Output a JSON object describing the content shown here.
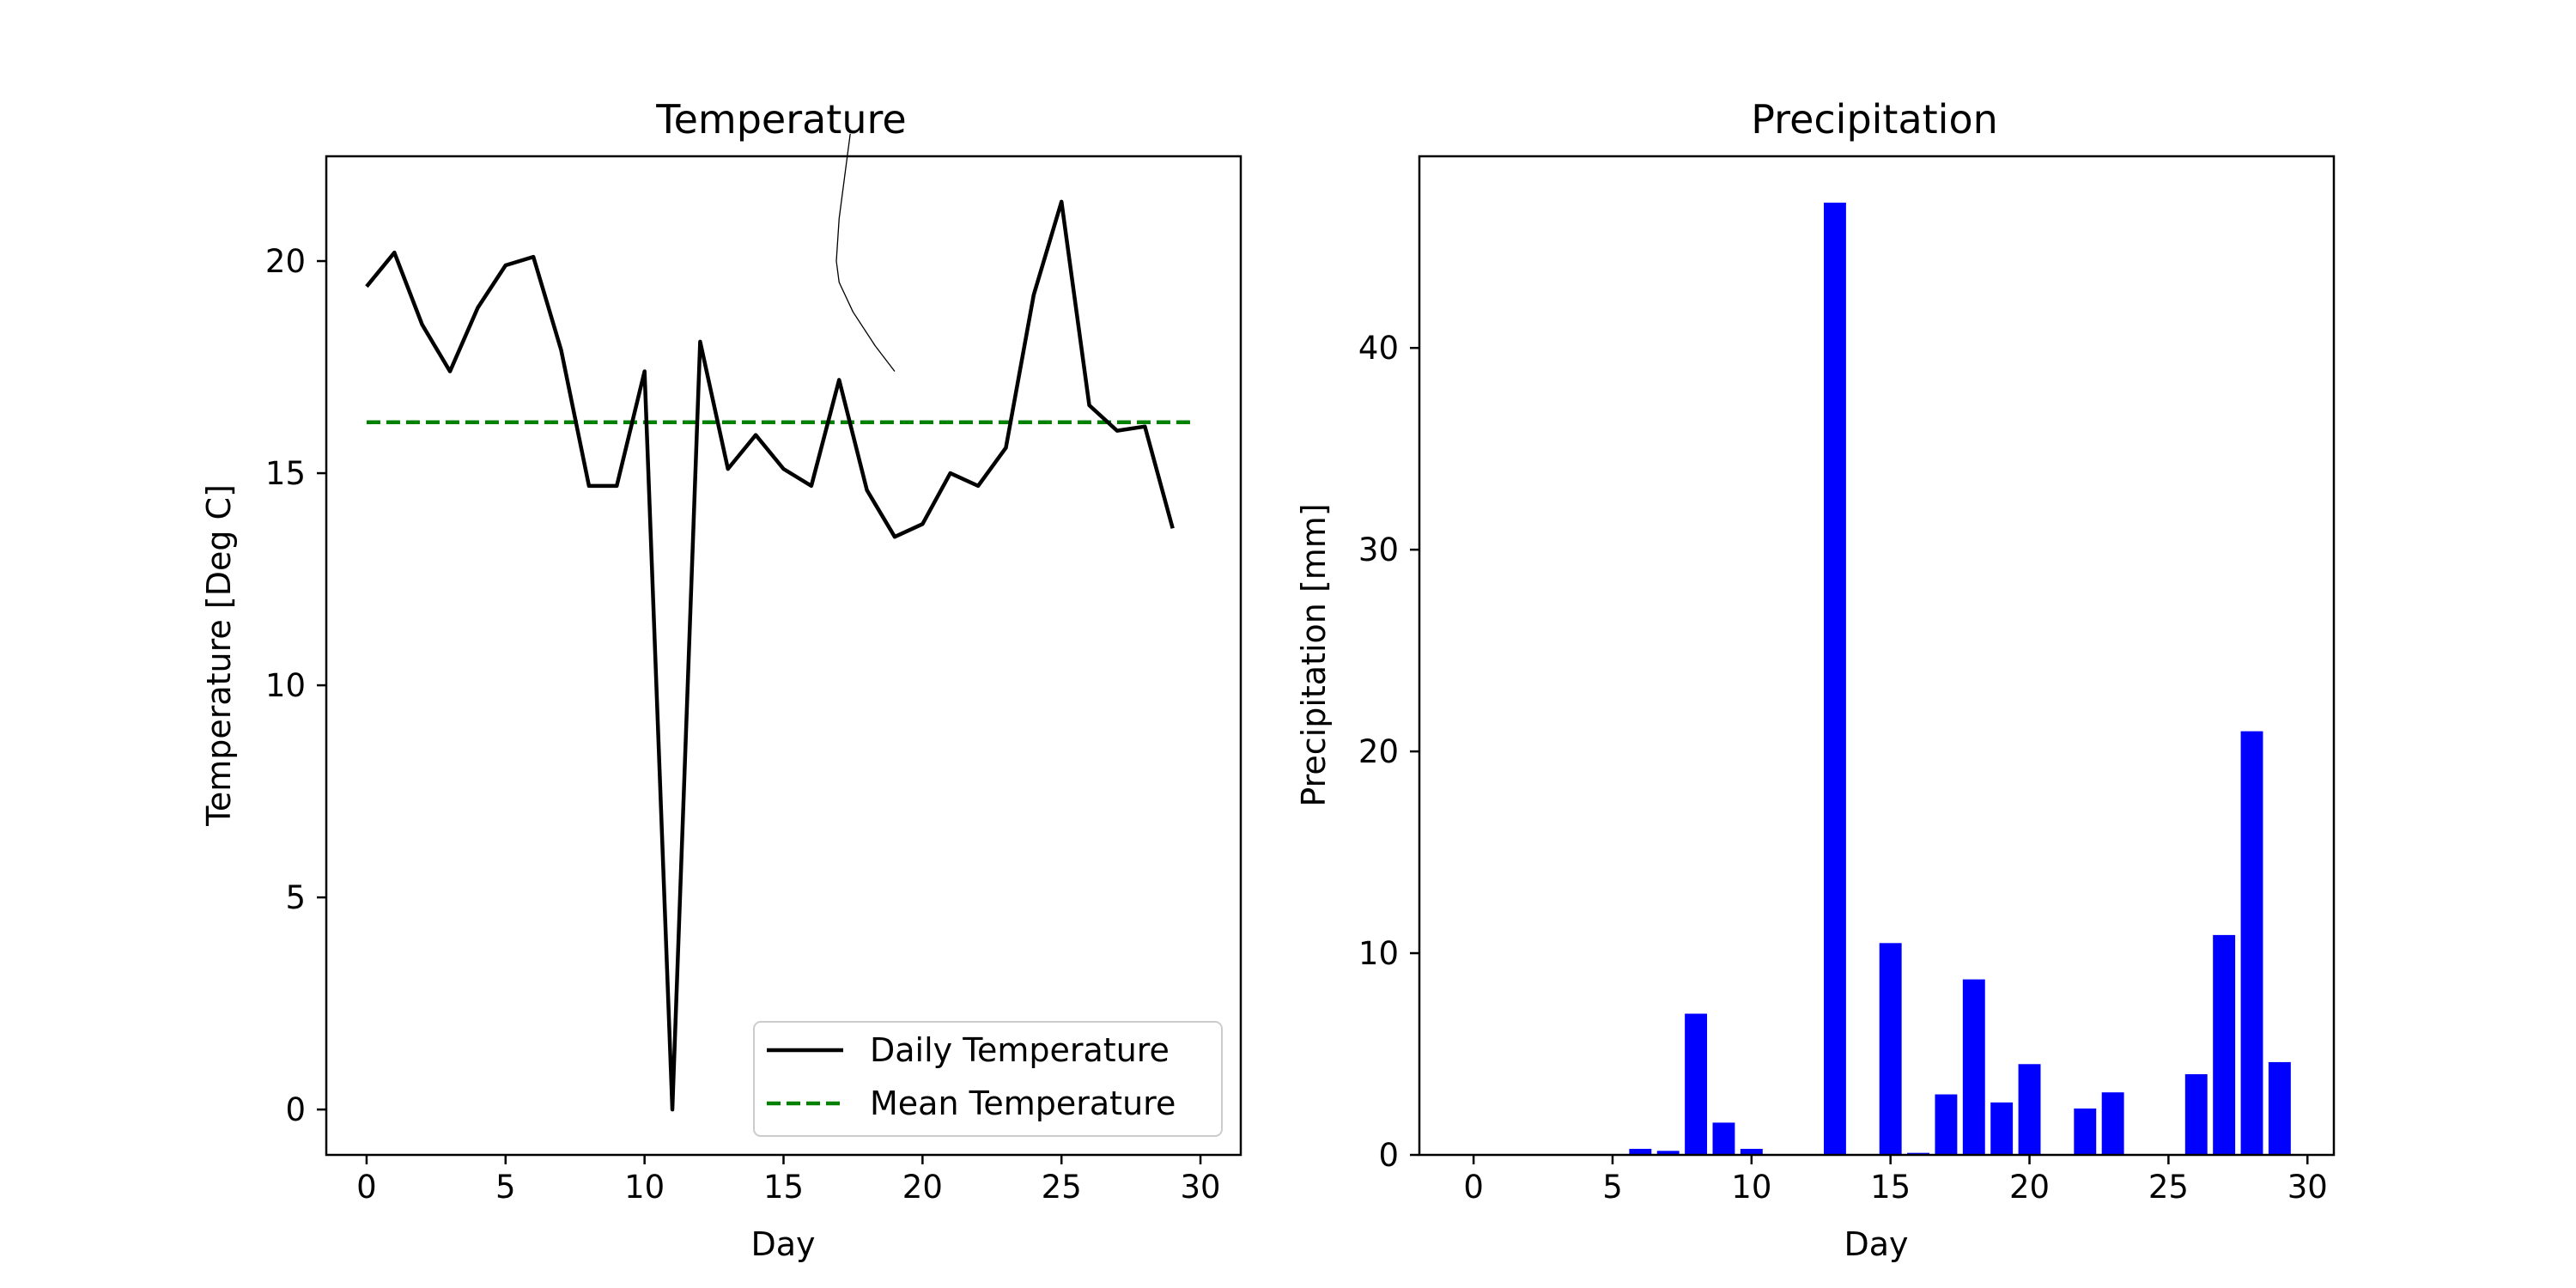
{
  "chart_data": [
    {
      "type": "line",
      "title": "Temperature",
      "xlabel": "Day",
      "ylabel": "Temperature [Deg C]",
      "xlim": [
        -1.45,
        31.45
      ],
      "ylim": [
        -1.07,
        22.47
      ],
      "xticks": [
        0,
        5,
        10,
        15,
        20,
        25,
        30
      ],
      "yticks": [
        0,
        5,
        10,
        15,
        20
      ],
      "grid": false,
      "legend_position": "lower-right",
      "x": [
        0,
        1,
        2,
        3,
        4,
        5,
        6,
        7,
        8,
        9,
        10,
        11,
        12,
        13,
        14,
        15,
        16,
        17,
        18,
        19,
        20,
        21,
        22,
        23,
        24,
        25,
        26,
        27,
        28,
        29
      ],
      "series": [
        {
          "name": "Daily Temperature",
          "color": "#000000",
          "style": "solid",
          "values": [
            19.4,
            20.2,
            18.5,
            17.4,
            18.9,
            19.9,
            20.1,
            17.9,
            14.7,
            14.7,
            17.4,
            0.0,
            18.1,
            15.1,
            15.9,
            15.1,
            14.7,
            17.2,
            14.6,
            13.5,
            13.8,
            15.0,
            14.7,
            15.6,
            19.2,
            21.4,
            16.6,
            16.0,
            16.1,
            13.7
          ]
        },
        {
          "name": "Mean Temperature",
          "color": "#008000",
          "style": "dashed",
          "x": [
            0,
            29.7
          ],
          "values": [
            16.2,
            16.2
          ]
        }
      ],
      "annotations": [
        {
          "kind": "hand-drawn-stroke",
          "color": "#000000",
          "points": [
            [
              17.4,
              23.0
            ],
            [
              17.0,
              21.0
            ],
            [
              16.9,
              20.0
            ],
            [
              17.0,
              19.5
            ],
            [
              17.5,
              18.8
            ],
            [
              18.3,
              18.0
            ],
            [
              19.0,
              17.4
            ]
          ]
        }
      ]
    },
    {
      "type": "bar",
      "title": "Precipitation",
      "xlabel": "Day",
      "ylabel": "Precipitation [mm]",
      "xlim": [
        -1.95,
        30.95
      ],
      "ylim": [
        0,
        49.5
      ],
      "xticks": [
        0,
        5,
        10,
        15,
        20,
        25,
        30
      ],
      "yticks": [
        0,
        10,
        20,
        30,
        40
      ],
      "grid": false,
      "color": "#0000ff",
      "bar_width": 0.8,
      "categories": [
        0,
        1,
        2,
        3,
        4,
        5,
        6,
        7,
        8,
        9,
        10,
        11,
        12,
        13,
        14,
        15,
        16,
        17,
        18,
        19,
        20,
        21,
        22,
        23,
        24,
        25,
        26,
        27,
        28,
        29
      ],
      "values": [
        0,
        0,
        0,
        0,
        0,
        0,
        0.3,
        0.2,
        7.0,
        1.6,
        0.3,
        0,
        0,
        47.2,
        0,
        10.5,
        0.1,
        3.0,
        8.7,
        2.6,
        4.5,
        0,
        2.3,
        3.1,
        0,
        0,
        4.0,
        10.9,
        21.0,
        4.6
      ]
    }
  ]
}
